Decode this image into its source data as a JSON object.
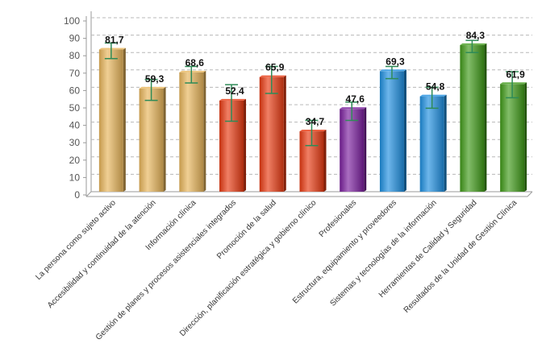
{
  "chart_data": {
    "type": "bar",
    "title": "",
    "xlabel": "",
    "ylabel": "",
    "ylim": [
      0,
      100
    ],
    "yticks": [
      0,
      10,
      20,
      30,
      40,
      50,
      60,
      70,
      80,
      90,
      100
    ],
    "grid": true,
    "legend": "none",
    "categories": [
      "La persona como sujeto activo",
      "Accesibilidad y continuidad de la atención",
      "Información clínica",
      "Gestión de planes y procesos asistenciales integrados",
      "Promoción de la salud",
      "Dirección, planificación estratégica y gobierno clínico",
      "Profesionales",
      "Estructura, equipamiento y proveedores",
      "Sistemas y tecnologías de la información",
      "Herramientas de Calidad y Seguridad",
      "Resultados de la Unidad de Gestión Clínica"
    ],
    "values": [
      81.7,
      59.3,
      68.6,
      52.4,
      65.9,
      34.7,
      47.6,
      69.3,
      54.8,
      84.3,
      61.9
    ],
    "value_labels": [
      "81,7",
      "59,3",
      "68,6",
      "52,4",
      "65,9",
      "34,7",
      "47,6",
      "69,3",
      "54,8",
      "84,3",
      "61,9"
    ],
    "error_low": [
      76.5,
      52.5,
      62.5,
      40.5,
      56.5,
      26.5,
      41.0,
      65.0,
      48.0,
      80.0,
      54.0
    ],
    "error_high": [
      85.5,
      64.5,
      72.0,
      61.5,
      72.0,
      41.0,
      51.5,
      72.0,
      60.0,
      87.0,
      69.0
    ],
    "bar_colors": [
      "#e8b55a",
      "#e8b55a",
      "#e8b55a",
      "#e83a12",
      "#e83a12",
      "#e83a12",
      "#7a1f9e",
      "#1e8fe0",
      "#1e8fe0",
      "#3f9a18",
      "#3f9a18"
    ],
    "error_bar_color": "#2e8b57"
  }
}
